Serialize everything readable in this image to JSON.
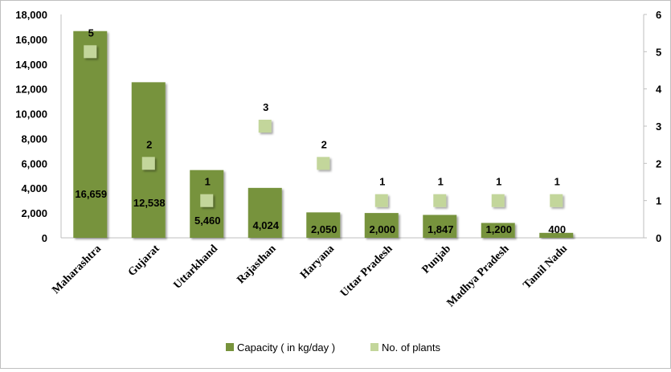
{
  "chart_data": {
    "type": "bar",
    "categories": [
      "Maharashtra",
      "Gujarat",
      "Uttarkhand",
      "Rajasthan",
      "Haryana",
      "Uttar Pradesh",
      "Punjab",
      "Madhya Pradesh",
      "Tamil Nadu"
    ],
    "series": [
      {
        "name": "Capacity ( in kg/day )",
        "type": "bar",
        "axis": "left",
        "values": [
          16659,
          12538,
          5460,
          4024,
          2050,
          2000,
          1847,
          1200,
          400
        ],
        "labels": [
          "16,659",
          "12,538",
          "5,460",
          "4,024",
          "2,050",
          "2,000",
          "1,847",
          "1,200",
          "400"
        ],
        "color": "#77933c"
      },
      {
        "name": "No. of plants",
        "type": "scatter",
        "axis": "right",
        "values": [
          5,
          2,
          1,
          3,
          2,
          1,
          1,
          1,
          1
        ],
        "labels": [
          "5",
          "2",
          "1",
          "3",
          "2",
          "1",
          "1",
          "1",
          "1"
        ],
        "color": "#c3d69b"
      }
    ],
    "left_axis": {
      "ylim": [
        0,
        18000
      ],
      "ticks": [
        "0",
        "2,000",
        "4,000",
        "6,000",
        "8,000",
        "10,000",
        "12,000",
        "14,000",
        "16,000",
        "18,000"
      ]
    },
    "right_axis": {
      "ylim": [
        0,
        6
      ],
      "ticks": [
        "0",
        "1",
        "2",
        "3",
        "4",
        "5",
        "6"
      ]
    },
    "legend_position": "bottom",
    "grid": false
  }
}
